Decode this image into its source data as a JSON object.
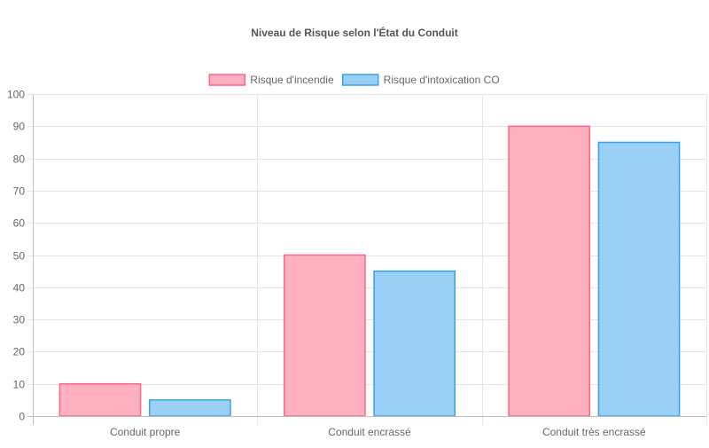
{
  "chart_data": {
    "type": "bar",
    "title": "Niveau de Risque selon l'État du Conduit",
    "categories": [
      "Conduit propre",
      "Conduit encrassé",
      "Conduit très encrassé"
    ],
    "series": [
      {
        "name": "Risque d'incendie",
        "values": [
          10,
          50,
          90
        ],
        "fill": "#ffb1c1",
        "stroke": "#ff6384"
      },
      {
        "name": "Risque d'intoxication CO",
        "values": [
          5,
          45,
          85
        ],
        "fill": "#9ad0f5",
        "stroke": "#36a2eb"
      }
    ],
    "ylim": [
      0,
      100
    ],
    "ytick_step": 10,
    "yticks": [
      "0",
      "10",
      "20",
      "30",
      "40",
      "50",
      "60",
      "70",
      "80",
      "90",
      "100"
    ],
    "grid": true,
    "legend_position": "top"
  },
  "colors": {
    "grid": "#e5e5e5",
    "axis": "#bdbdbd",
    "text": "#666666",
    "title": "#555555"
  }
}
